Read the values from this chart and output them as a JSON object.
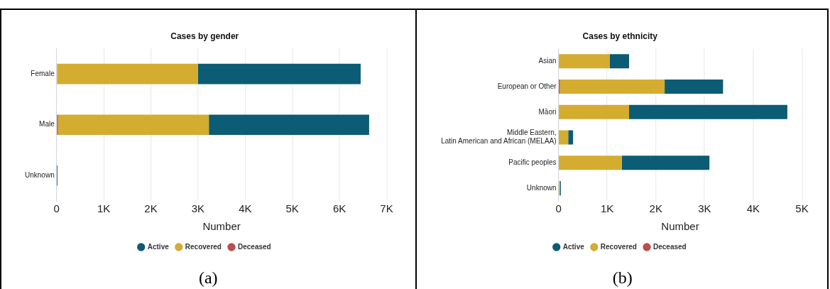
{
  "chart_data": [
    {
      "type": "bar",
      "title": "Cases by gender",
      "xlabel": "Number",
      "orientation": "horizontal",
      "stacked": true,
      "categories": [
        "Female",
        "Male",
        "Unknown"
      ],
      "series": [
        {
          "name": "Deceased",
          "color": "#b94d4f",
          "values": [
            null,
            30,
            0
          ]
        },
        {
          "name": "Recovered",
          "color": "#d4ac2f",
          "values": [
            3000,
            3200,
            0
          ]
        },
        {
          "name": "Active",
          "color": "#0b5c74",
          "values": [
            3450,
            3400,
            20
          ]
        }
      ],
      "xlim": [
        0,
        7000
      ],
      "xticks": [
        {
          "value": 0,
          "label": "0"
        },
        {
          "value": 1000,
          "label": "1K"
        },
        {
          "value": 2000,
          "label": "2K"
        },
        {
          "value": 3000,
          "label": "3K"
        },
        {
          "value": 4000,
          "label": "4K"
        },
        {
          "value": 5000,
          "label": "5K"
        },
        {
          "value": 6000,
          "label": "6K"
        },
        {
          "value": 7000,
          "label": "7K"
        }
      ],
      "grid": "x",
      "legend": "bottom",
      "annotations": [
        "(a)"
      ]
    },
    {
      "type": "bar",
      "title": "Cases by ethnicity",
      "xlabel": "Number",
      "orientation": "horizontal",
      "stacked": true,
      "categories": [
        "Asian",
        "European or Other",
        "Māori",
        "Middle Eastern, Latin American and African (MELAA)",
        "Pacific peoples",
        "Unknown"
      ],
      "series": [
        {
          "name": "Deceased",
          "color": "#b94d4f",
          "values": [
            0,
            30,
            null,
            0,
            0,
            0
          ]
        },
        {
          "name": "Recovered",
          "color": "#d4ac2f",
          "values": [
            1050,
            2150,
            1450,
            200,
            1300,
            30
          ]
        },
        {
          "name": "Active",
          "color": "#0b5c74",
          "values": [
            400,
            1200,
            3250,
            100,
            1800,
            20
          ]
        }
      ],
      "xlim": [
        0,
        5000
      ],
      "xticks": [
        {
          "value": 0,
          "label": "0"
        },
        {
          "value": 1000,
          "label": "1K"
        },
        {
          "value": 2000,
          "label": "2K"
        },
        {
          "value": 3000,
          "label": "3K"
        },
        {
          "value": 4000,
          "label": "4K"
        },
        {
          "value": 5000,
          "label": "5K"
        }
      ],
      "grid": "x",
      "legend": "bottom",
      "annotations": [
        "(b)"
      ]
    }
  ]
}
